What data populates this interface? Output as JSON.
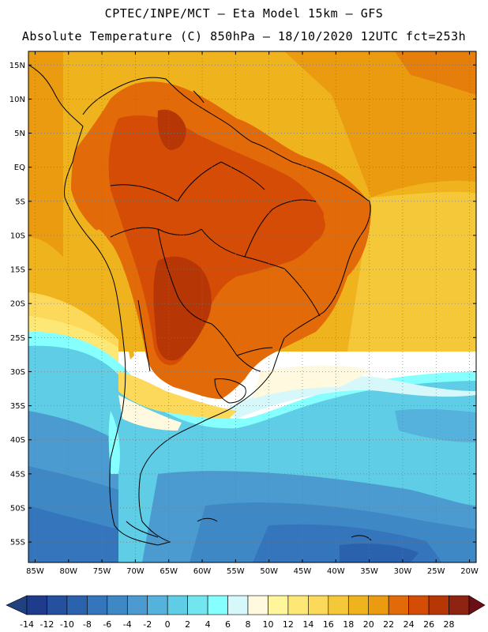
{
  "header": {
    "line1": "CPTEC/INPE/MCT –  Eta Model 15km – GFS",
    "line2": "Absolute Temperature (C) 850hPa – 18/10/2020 12UTC fct=253h"
  },
  "map": {
    "lat_labels": [
      "15N",
      "10N",
      "5N",
      "EQ",
      "5S",
      "10S",
      "15S",
      "20S",
      "25S",
      "30S",
      "35S",
      "40S",
      "45S",
      "50S",
      "55S"
    ],
    "lon_labels": [
      "85W",
      "80W",
      "75W",
      "70W",
      "65W",
      "60W",
      "55W",
      "50W",
      "45W",
      "40W",
      "35W",
      "30W",
      "25W",
      "20W"
    ],
    "lat_values": [
      15,
      10,
      5,
      0,
      -5,
      -10,
      -15,
      -20,
      -25,
      -30,
      -35,
      -40,
      -45,
      -50,
      -55
    ],
    "lon_values": [
      -85,
      -80,
      -75,
      -70,
      -65,
      -60,
      -55,
      -50,
      -45,
      -40,
      -35,
      -30,
      -25,
      -20
    ],
    "lat_range": [
      -58,
      17
    ],
    "lon_range": [
      -86,
      -19
    ]
  },
  "colorbar": {
    "labels": [
      "-14",
      "-12",
      "-10",
      "-8",
      "-6",
      "-4",
      "-2",
      "0",
      "2",
      "4",
      "6",
      "8",
      "10",
      "12",
      "14",
      "16",
      "18",
      "20",
      "22",
      "24",
      "26",
      "28"
    ],
    "colors": [
      "#1f3c8c",
      "#24509f",
      "#2b62ae",
      "#3475bb",
      "#3f88c6",
      "#4b9bd0",
      "#55b2dc",
      "#5fcde6",
      "#72e6ef",
      "#86ffff",
      "#d7f8fb",
      "#fff9e0",
      "#fff59a",
      "#fee875",
      "#fcd95a",
      "#f5c83a",
      "#efb41d",
      "#eb9b10",
      "#e36a08",
      "#d54c06",
      "#b63605",
      "#8f2312"
    ],
    "under_color": "#21407f",
    "over_color": "#6a0f14"
  }
}
